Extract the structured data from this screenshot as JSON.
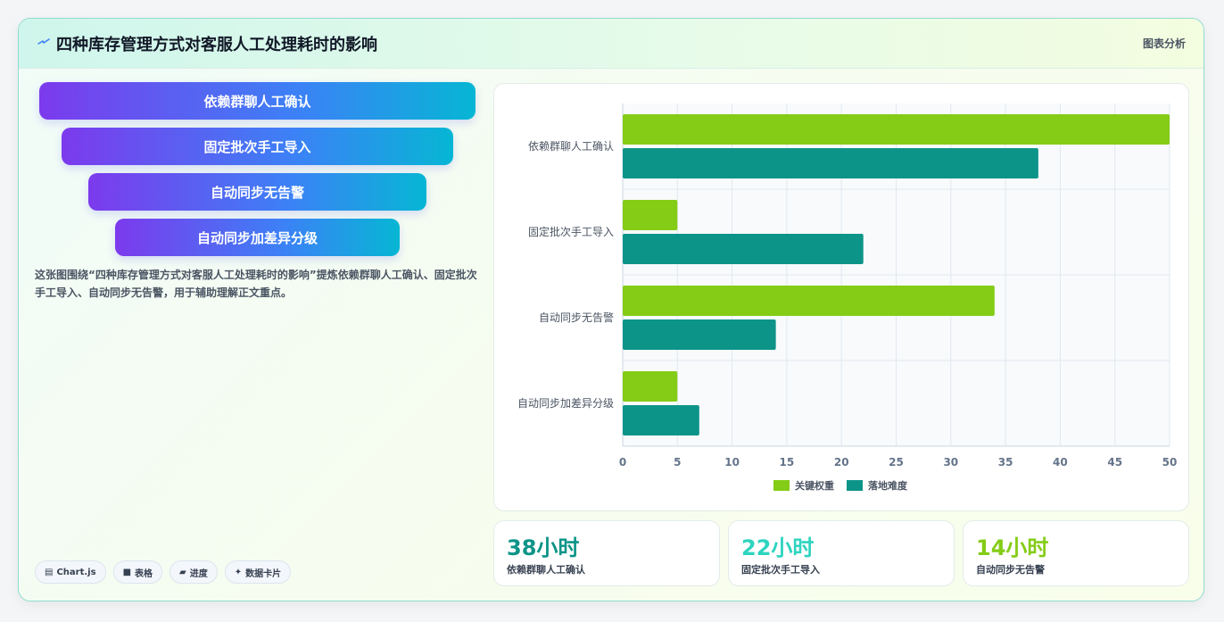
{
  "header": {
    "title": "四种库存管理方式对客服人工处理耗时的影响",
    "link": "图表分析"
  },
  "funnel": [
    {
      "label": "依赖群聊人工确认"
    },
    {
      "label": "固定批次手工导入"
    },
    {
      "label": "自动同步无告警"
    },
    {
      "label": "自动同步加差异分级"
    }
  ],
  "description": "这张图围绕“四种库存管理方式对客服人工处理耗时的影响”提炼依赖群聊人工确认、固定批次手工导入、自动同步无告警，用于辅助理解正文重点。",
  "tags": [
    {
      "icon": "chart-icon",
      "glyph": "▤",
      "label": "Chart.js"
    },
    {
      "icon": "table-icon",
      "glyph": "■",
      "label": "表格"
    },
    {
      "icon": "progress-icon",
      "glyph": "▰",
      "label": "进度"
    },
    {
      "icon": "card-icon",
      "glyph": "✦",
      "label": "数据卡片"
    }
  ],
  "chart_data": {
    "type": "bar",
    "orientation": "horizontal",
    "categories": [
      "依赖群聊人工确认",
      "固定批次手工导入",
      "自动同步无告警",
      "自动同步加差异分级"
    ],
    "series": [
      {
        "name": "关键权重",
        "color": "#84cc16",
        "values": [
          50,
          5,
          34,
          5
        ]
      },
      {
        "name": "落地难度",
        "color": "#0d9488",
        "values": [
          38,
          22,
          14,
          7
        ]
      }
    ],
    "xlim": [
      0,
      50
    ],
    "xticks": [
      0,
      5,
      10,
      15,
      20,
      25,
      30,
      35,
      40,
      45,
      50
    ],
    "grid": true,
    "legend": "bottom"
  },
  "kpis": [
    {
      "value": "38小时",
      "label": "依赖群聊人工确认",
      "color": "#0d9488"
    },
    {
      "value": "22小时",
      "label": "固定批次手工导入",
      "color": "#2dd4bf"
    },
    {
      "value": "14小时",
      "label": "自动同步无告警",
      "color": "#84cc16"
    }
  ]
}
